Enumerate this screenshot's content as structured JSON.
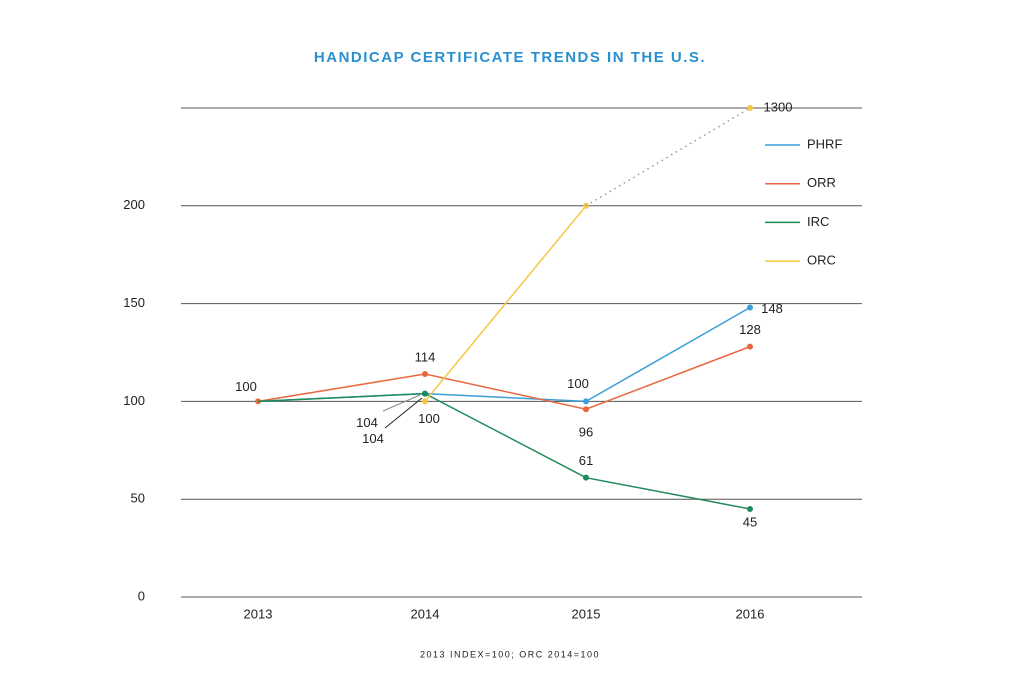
{
  "chart_data": {
    "type": "line",
    "title": "HANDICAP CERTIFICATE TRENDS IN THE U.S.",
    "note": "2013 INDEX=100; ORC 2014=100",
    "categories": [
      "2013",
      "2014",
      "2015",
      "2016"
    ],
    "series": [
      {
        "name": "PHRF",
        "color": "#3a9fd6",
        "values": [
          100,
          104,
          100,
          148
        ],
        "value_labels": [
          null,
          "104",
          "100",
          "148"
        ]
      },
      {
        "name": "ORR",
        "color": "#e8673f",
        "values": [
          100,
          114,
          96,
          128
        ],
        "value_labels": [
          "100",
          "114",
          "96",
          "128"
        ]
      },
      {
        "name": "IRC",
        "color": "#1e8a5a",
        "values": [
          100,
          104,
          61,
          45
        ],
        "value_labels": [
          null,
          "104",
          "61",
          "45"
        ]
      },
      {
        "name": "ORC",
        "color": "#f5c842",
        "values": [
          null,
          100,
          200,
          1300
        ],
        "value_labels": [
          null,
          "100",
          null,
          "1300"
        ]
      }
    ],
    "ylim": [
      0,
      250
    ],
    "yticks": [
      0,
      50,
      100,
      150,
      200
    ],
    "grid": true,
    "legend": "right"
  }
}
